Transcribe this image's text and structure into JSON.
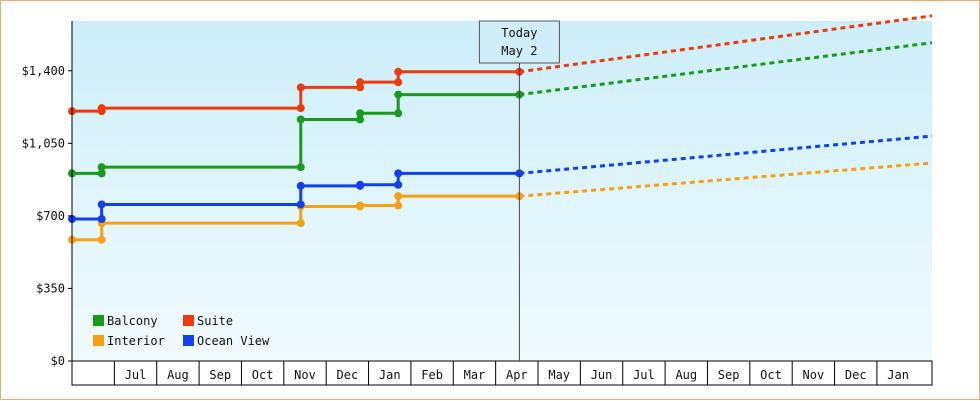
{
  "chart_data": {
    "type": "line",
    "title": "",
    "xlabel": "",
    "ylabel": "",
    "ylim": [
      0,
      1640
    ],
    "yticks": [
      {
        "value": 0,
        "label": "$0"
      },
      {
        "value": 350,
        "label": "$350"
      },
      {
        "value": 700,
        "label": "$700"
      },
      {
        "value": 1050,
        "label": "$1,050"
      },
      {
        "value": 1400,
        "label": "$1,400"
      }
    ],
    "x_unit": "month index (Jul = 1)",
    "xlim": [
      -0.5,
      19.8
    ],
    "x_tick_labels": [
      "Jul",
      "Aug",
      "Sep",
      "Oct",
      "Nov",
      "Dec",
      "Jan",
      "Feb",
      "Mar",
      "Apr",
      "May",
      "Jun",
      "Jul",
      "Aug",
      "Sep",
      "Oct",
      "Nov",
      "Dec",
      "Jan"
    ],
    "today": {
      "line1": "Today",
      "line2": "May 2",
      "x": 10.06
    },
    "grid": false,
    "legend_position": "bottom-left",
    "series": [
      {
        "name": "Balcony",
        "color": "#1a9a1a",
        "points": [
          [
            -0.5,
            905
          ],
          [
            0.2,
            905
          ],
          [
            0.2,
            935
          ],
          [
            4.9,
            935
          ],
          [
            4.9,
            1165
          ],
          [
            6.3,
            1165
          ],
          [
            6.3,
            1195
          ],
          [
            7.2,
            1195
          ],
          [
            7.2,
            1285
          ],
          [
            10.06,
            1285
          ]
        ],
        "forecast": [
          [
            10.06,
            1285
          ],
          [
            19.8,
            1535
          ]
        ]
      },
      {
        "name": "Suite",
        "color": "#ee3a0a",
        "points": [
          [
            -0.5,
            1205
          ],
          [
            0.2,
            1205
          ],
          [
            0.2,
            1220
          ],
          [
            4.9,
            1220
          ],
          [
            4.9,
            1320
          ],
          [
            6.3,
            1320
          ],
          [
            6.3,
            1345
          ],
          [
            7.2,
            1345
          ],
          [
            7.2,
            1395
          ],
          [
            10.06,
            1395
          ]
        ],
        "forecast": [
          [
            10.06,
            1395
          ],
          [
            19.8,
            1665
          ]
        ]
      },
      {
        "name": "Interior",
        "color": "#f6a012",
        "points": [
          [
            -0.5,
            585
          ],
          [
            0.2,
            585
          ],
          [
            0.2,
            665
          ],
          [
            4.9,
            665
          ],
          [
            4.9,
            745
          ],
          [
            6.3,
            745
          ],
          [
            6.3,
            750
          ],
          [
            7.2,
            750
          ],
          [
            7.2,
            795
          ],
          [
            10.06,
            795
          ]
        ],
        "forecast": [
          [
            10.06,
            795
          ],
          [
            19.8,
            955
          ]
        ]
      },
      {
        "name": "Ocean View",
        "color": "#1040f0",
        "points": [
          [
            -0.5,
            685
          ],
          [
            0.2,
            685
          ],
          [
            0.2,
            755
          ],
          [
            4.9,
            755
          ],
          [
            4.9,
            845
          ],
          [
            6.3,
            845
          ],
          [
            6.3,
            850
          ],
          [
            7.2,
            850
          ],
          [
            7.2,
            905
          ],
          [
            10.06,
            905
          ]
        ],
        "forecast": [
          [
            10.06,
            905
          ],
          [
            19.8,
            1085
          ]
        ]
      }
    ]
  }
}
